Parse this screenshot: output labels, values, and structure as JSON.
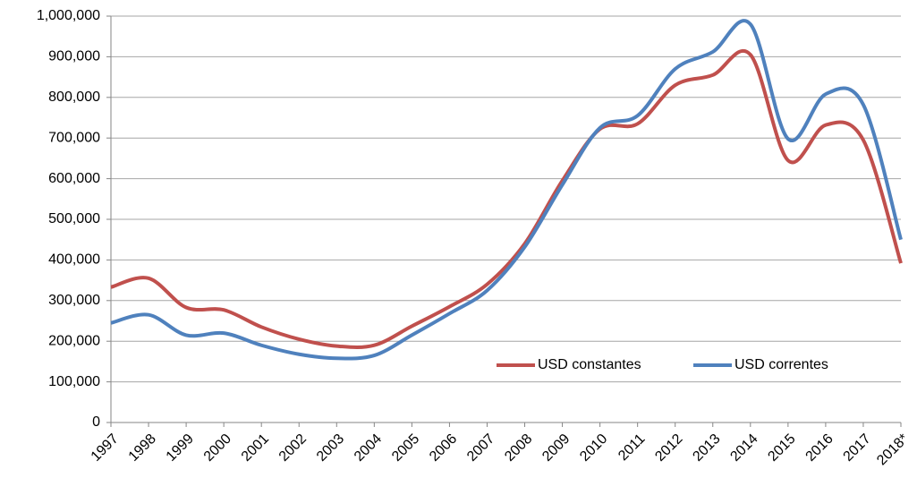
{
  "chart_data": {
    "type": "line",
    "categories": [
      "1997",
      "1998",
      "1999",
      "2000",
      "2001",
      "2002",
      "2003",
      "2004",
      "2005",
      "2006",
      "2007",
      "2008",
      "2009",
      "2010",
      "2011",
      "2012",
      "2013",
      "2014",
      "2015",
      "2016",
      "2017",
      "2018*"
    ],
    "series": [
      {
        "name": "USD constantes",
        "color": "#c0504d",
        "values": [
          333000,
          355000,
          283000,
          277000,
          235000,
          205000,
          188000,
          190000,
          237000,
          285000,
          340000,
          440000,
          595000,
          722000,
          735000,
          830000,
          855000,
          905000,
          645000,
          732000,
          695000,
          392000
        ]
      },
      {
        "name": "USD correntes",
        "color": "#4f81bd",
        "values": [
          245000,
          265000,
          215000,
          220000,
          190000,
          168000,
          158000,
          165000,
          215000,
          268000,
          325000,
          432000,
          585000,
          725000,
          755000,
          870000,
          912000,
          980000,
          698000,
          808000,
          782000,
          450000
        ]
      }
    ],
    "ylim": [
      0,
      1000000
    ],
    "yticks": [
      0,
      {
        "value": 100000,
        "label": "100,000"
      },
      {
        "value": 200000,
        "label": "200,000"
      },
      {
        "value": 300000,
        "label": "300,000"
      },
      {
        "value": 400000,
        "label": "400,000"
      },
      {
        "value": 500000,
        "label": "500,000"
      },
      {
        "value": 600000,
        "label": "600,000"
      },
      {
        "value": 700000,
        "label": "700,000"
      },
      {
        "value": 800000,
        "label": "800,000"
      },
      {
        "value": 900000,
        "label": "900,000"
      },
      {
        "value": 1000000,
        "label": "1,000,000"
      }
    ],
    "grid": true,
    "legend": "inside-bottom-right"
  }
}
